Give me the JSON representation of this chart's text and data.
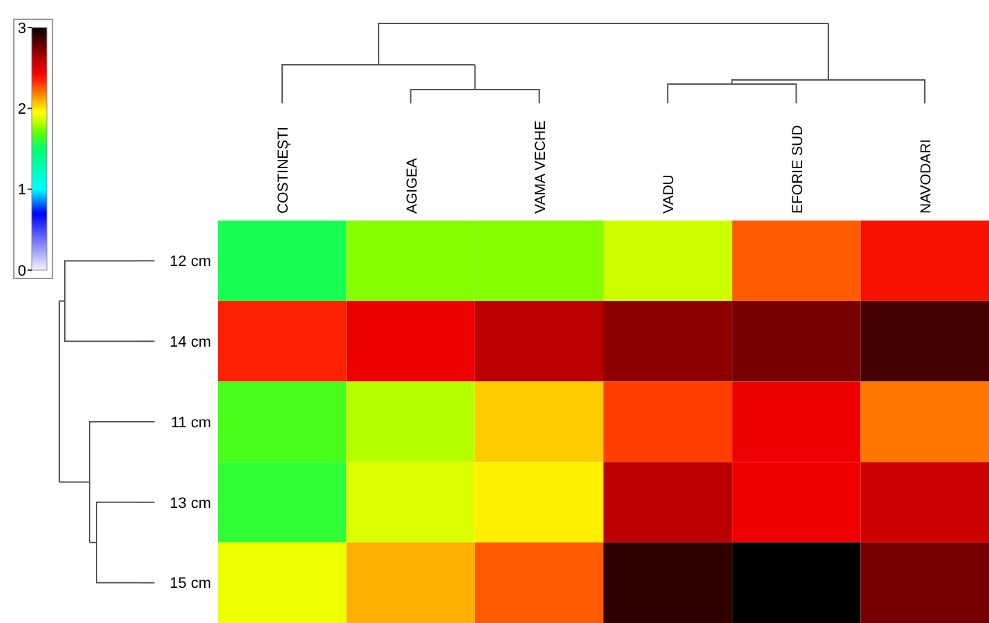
{
  "chart_data": {
    "type": "heatmap",
    "categories": [
      "COSTINEȘTI",
      "AGIGEA",
      "VAMA VECHE",
      "VADU",
      "EFORIE SUD",
      "NAVODARI"
    ],
    "y_categories": [
      "12 cm",
      "14 cm",
      "11 cm",
      "13 cm",
      "15 cm"
    ],
    "cells": [
      [
        1.55,
        1.75,
        1.75,
        1.85,
        2.25,
        2.4
      ],
      [
        2.35,
        2.45,
        2.6,
        2.7,
        2.75,
        2.85
      ],
      [
        1.65,
        1.82,
        2.05,
        2.3,
        2.45,
        2.2
      ],
      [
        1.6,
        1.88,
        1.98,
        2.6,
        2.45,
        2.55
      ],
      [
        1.92,
        2.1,
        2.25,
        2.9,
        3,
        2.75
      ]
    ],
    "clim": [
      0,
      3
    ],
    "cticks": [
      0,
      1,
      2,
      3
    ]
  }
}
